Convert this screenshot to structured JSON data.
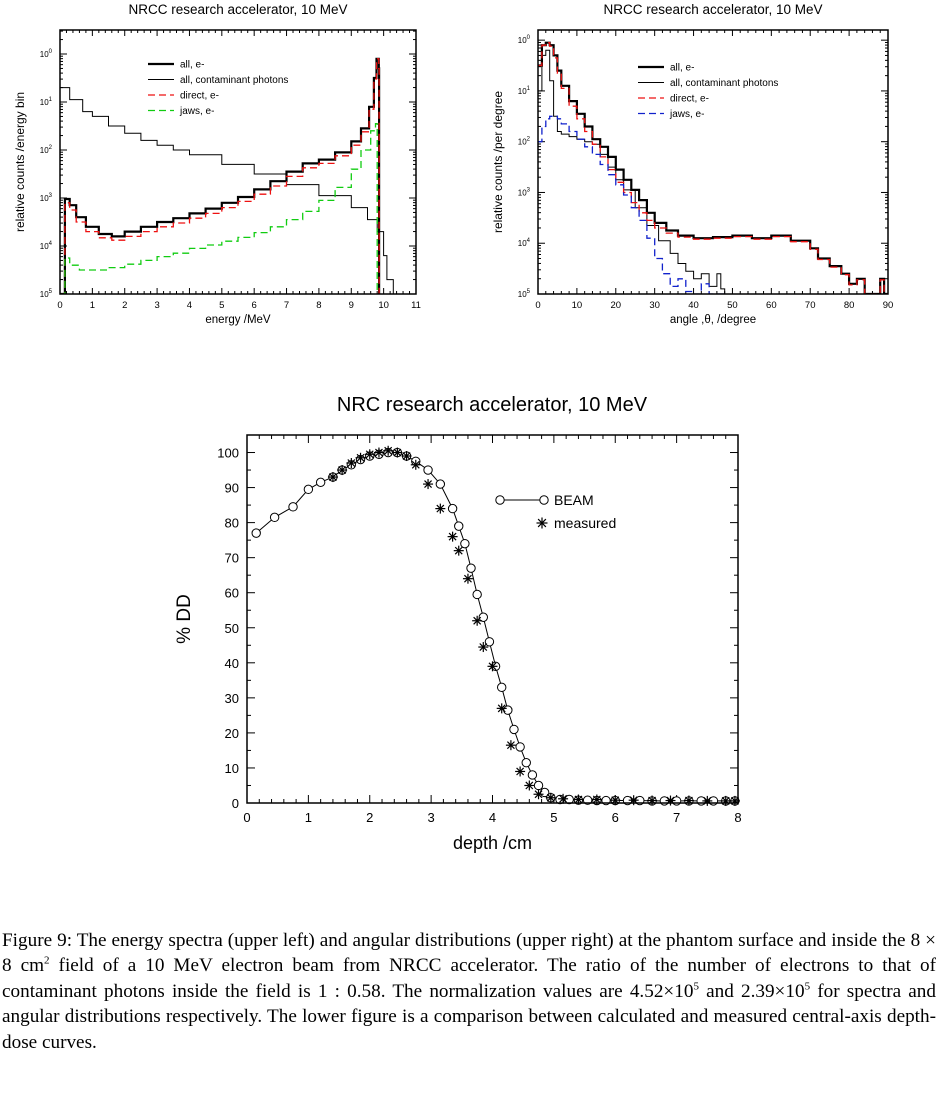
{
  "chart_data": [
    {
      "type": "line",
      "title": "NRCC research accelerator, 10 MeV",
      "xlabel": "energy /MeV",
      "ylabel": "relative counts /energy bin",
      "xlim": [
        0,
        11
      ],
      "ylim_log10": [
        -5,
        0.5
      ],
      "y_scale": "log",
      "xticks": [
        "0",
        "1",
        "2",
        "3",
        "4",
        "5",
        "6",
        "7",
        "8",
        "9",
        "10",
        "11"
      ],
      "yticks": [
        {
          "base": "10",
          "exp": "0",
          "v": 0
        },
        {
          "base": "10",
          "exp": "1",
          "v": -1
        },
        {
          "base": "10",
          "exp": "2",
          "v": -2
        },
        {
          "base": "10",
          "exp": "3",
          "v": -3
        },
        {
          "base": "10",
          "exp": "4",
          "v": -4
        },
        {
          "base": "10",
          "exp": "5",
          "v": -5
        }
      ],
      "legend_position": "top-center",
      "series": [
        {
          "name": "all, e-",
          "color": "#000000",
          "dash": "",
          "width": 2.2,
          "x": [
            0,
            0.1,
            0.15,
            0.3,
            0.5,
            0.8,
            1.2,
            1.6,
            2,
            2.5,
            3,
            3.5,
            4,
            4.5,
            5,
            5.5,
            6,
            6.5,
            7,
            7.5,
            8,
            8.5,
            9,
            9.3,
            9.55,
            9.7,
            9.78,
            9.85,
            9.86
          ],
          "y": [
            -5,
            -5,
            -3.02,
            -3.15,
            -3.4,
            -3.6,
            -3.75,
            -3.8,
            -3.7,
            -3.6,
            -3.5,
            -3.42,
            -3.32,
            -3.22,
            -3.1,
            -2.98,
            -2.82,
            -2.65,
            -2.45,
            -2.28,
            -2.2,
            -2.05,
            -1.82,
            -1.55,
            -1.1,
            -0.5,
            -0.1,
            -0.3,
            -5
          ]
        },
        {
          "name": "all, contaminant photons",
          "color": "#000000",
          "dash": "",
          "width": 1,
          "x": [
            0,
            0.3,
            0.7,
            1,
            1.5,
            2,
            2.5,
            3,
            3.5,
            4,
            5,
            6,
            7,
            8,
            9,
            9.5,
            9.8,
            10,
            10.1,
            10.3
          ],
          "y": [
            -0.7,
            -0.95,
            -1.2,
            -1.3,
            -1.5,
            -1.65,
            -1.8,
            -1.9,
            -2,
            -2.1,
            -2.3,
            -2.5,
            -2.72,
            -2.95,
            -3.2,
            -3.45,
            -3.7,
            -4.2,
            -4.7,
            -5
          ]
        },
        {
          "name": "direct, e-",
          "color": "#ee1111",
          "dash": "7,4",
          "width": 1.3,
          "x": [
            0,
            0.1,
            0.15,
            0.3,
            0.5,
            0.8,
            1.2,
            1.6,
            2,
            2.5,
            3,
            3.5,
            4,
            4.5,
            5,
            5.5,
            6,
            6.5,
            7,
            7.5,
            8,
            8.5,
            9,
            9.3,
            9.55,
            9.7,
            9.78,
            9.85,
            9.86
          ],
          "y": [
            -5,
            -5,
            -3.1,
            -3.25,
            -3.5,
            -3.7,
            -3.83,
            -3.88,
            -3.8,
            -3.7,
            -3.6,
            -3.52,
            -3.42,
            -3.32,
            -3.2,
            -3.07,
            -2.92,
            -2.75,
            -2.55,
            -2.37,
            -2.28,
            -2.12,
            -1.9,
            -1.62,
            -1.15,
            -0.52,
            -0.1,
            -0.3,
            -5
          ]
        },
        {
          "name": "jaws, e-",
          "color": "#11cc11",
          "dash": "7,4",
          "width": 1.3,
          "x": [
            0,
            0.1,
            0.15,
            0.3,
            0.6,
            1,
            1.5,
            2,
            2.5,
            3,
            3.5,
            4,
            4.5,
            5,
            5.5,
            6,
            6.5,
            7,
            7.5,
            8,
            8.5,
            9,
            9.3,
            9.6,
            9.75,
            9.8
          ],
          "y": [
            -5,
            -5,
            -4.25,
            -4.4,
            -4.5,
            -4.5,
            -4.45,
            -4.38,
            -4.3,
            -4.22,
            -4.15,
            -4.05,
            -3.98,
            -3.9,
            -3.82,
            -3.72,
            -3.6,
            -3.45,
            -3.28,
            -3.05,
            -2.78,
            -2.4,
            -2.0,
            -1.6,
            -1.45,
            -5
          ]
        }
      ]
    },
    {
      "type": "line",
      "title": "NRCC research accelerator, 10 MeV",
      "xlabel": "angle ,θ, /degree",
      "ylabel": "relative counts /per degree",
      "xlim": [
        0,
        90
      ],
      "ylim_log10": [
        -5,
        0.2
      ],
      "y_scale": "log",
      "xticks": [
        "0",
        "10",
        "20",
        "30",
        "40",
        "50",
        "60",
        "70",
        "80",
        "90"
      ],
      "yticks": [
        {
          "base": "10",
          "exp": "0",
          "v": 0
        },
        {
          "base": "10",
          "exp": "1",
          "v": -1
        },
        {
          "base": "10",
          "exp": "2",
          "v": -2
        },
        {
          "base": "10",
          "exp": "3",
          "v": -3
        },
        {
          "base": "10",
          "exp": "4",
          "v": -4
        },
        {
          "base": "10",
          "exp": "5",
          "v": -5
        }
      ],
      "legend_position": "top-right",
      "series": [
        {
          "name": "all, e-",
          "color": "#000000",
          "dash": "",
          "width": 2.2,
          "x": [
            0,
            1,
            2,
            3,
            4,
            5,
            6,
            8,
            10,
            12,
            14,
            16,
            18,
            20,
            22,
            24,
            26,
            28,
            30,
            33,
            36,
            40,
            45,
            50,
            55,
            60,
            65,
            70,
            72,
            75,
            78,
            80,
            82,
            84,
            86,
            88,
            89,
            90
          ],
          "y": [
            -0.5,
            -0.1,
            -0.05,
            -0.1,
            -0.3,
            -0.6,
            -0.9,
            -1.2,
            -1.45,
            -1.7,
            -1.95,
            -2.1,
            -2.3,
            -2.55,
            -2.75,
            -2.95,
            -3.15,
            -3.4,
            -3.6,
            -3.75,
            -3.85,
            -3.9,
            -3.88,
            -3.85,
            -3.9,
            -3.85,
            -3.95,
            -4.1,
            -4.3,
            -4.45,
            -4.6,
            -4.8,
            -4.7,
            -5,
            -5,
            -4.7,
            -5,
            -5
          ]
        },
        {
          "name": "all, contaminant photons",
          "color": "#000000",
          "dash": "",
          "width": 1,
          "x": [
            0,
            1,
            2,
            3,
            4,
            5,
            6,
            8,
            10,
            12,
            14,
            16,
            18,
            20,
            22,
            25,
            28,
            31,
            34,
            36,
            38,
            40,
            42,
            44,
            46,
            47,
            48
          ],
          "y": [
            -1.0,
            -0.3,
            -0.2,
            -0.8,
            -1.5,
            -1.8,
            -1.85,
            -1.9,
            -1.95,
            -2.0,
            -2.05,
            -2.25,
            -2.5,
            -2.75,
            -2.95,
            -3.3,
            -3.65,
            -3.95,
            -4.2,
            -4.4,
            -4.55,
            -4.7,
            -4.6,
            -4.85,
            -4.6,
            -4.9,
            -5
          ]
        },
        {
          "name": "direct, e-",
          "color": "#ee1111",
          "dash": "7,4",
          "width": 1.3,
          "x": [
            0,
            1,
            2,
            3,
            4,
            5,
            6,
            8,
            10,
            12,
            14,
            16,
            18,
            20,
            22,
            24,
            26,
            28,
            30,
            33,
            36,
            40,
            45,
            50,
            55,
            60,
            65,
            70,
            72,
            75,
            78,
            80,
            82,
            84,
            86,
            88,
            89,
            90
          ],
          "y": [
            -0.5,
            -0.1,
            -0.05,
            -0.12,
            -0.35,
            -0.65,
            -0.95,
            -1.3,
            -1.55,
            -1.8,
            -2.05,
            -2.3,
            -2.55,
            -2.8,
            -3.0,
            -3.2,
            -3.4,
            -3.55,
            -3.7,
            -3.8,
            -3.88,
            -3.92,
            -3.9,
            -3.87,
            -3.92,
            -3.87,
            -3.97,
            -4.12,
            -4.32,
            -4.47,
            -4.62,
            -4.82,
            -4.72,
            -5,
            -5,
            -4.72,
            -5,
            -5
          ]
        },
        {
          "name": "jaws, e-",
          "color": "#1122cc",
          "dash": "7,4",
          "width": 1.3,
          "x": [
            0,
            1,
            2,
            3,
            4,
            5,
            6,
            8,
            10,
            12,
            14,
            16,
            18,
            20,
            22,
            24,
            26,
            28,
            30,
            32,
            34,
            36,
            38,
            40,
            42,
            44,
            46,
            48
          ],
          "y": [
            -2.0,
            -1.7,
            -1.55,
            -1.5,
            -1.5,
            -1.55,
            -1.65,
            -1.8,
            -1.95,
            -2.1,
            -2.25,
            -2.45,
            -2.65,
            -2.85,
            -3.05,
            -3.3,
            -3.55,
            -3.9,
            -4.3,
            -4.6,
            -4.85,
            -4.7,
            -4.95,
            -5,
            -4.8,
            -5,
            -5,
            -5
          ]
        }
      ]
    },
    {
      "type": "scatter",
      "title": "NRC research accelerator, 10 MeV",
      "xlabel": "depth /cm",
      "ylabel": "% DD",
      "xlim": [
        0,
        8
      ],
      "ylim": [
        0,
        105
      ],
      "xticks": [
        "0",
        "1",
        "2",
        "3",
        "4",
        "5",
        "6",
        "7",
        "8"
      ],
      "yticks": [
        "0",
        "10",
        "20",
        "30",
        "40",
        "50",
        "60",
        "70",
        "80",
        "90",
        "100"
      ],
      "legend_position": "top-right",
      "series": [
        {
          "name": "BEAM",
          "marker": "circle",
          "line": true,
          "x": [
            0.15,
            0.45,
            0.75,
            1.0,
            1.2,
            1.4,
            1.55,
            1.7,
            1.85,
            2.0,
            2.15,
            2.3,
            2.45,
            2.6,
            2.75,
            2.95,
            3.15,
            3.35,
            3.45,
            3.55,
            3.65,
            3.75,
            3.85,
            3.95,
            4.05,
            4.15,
            4.25,
            4.35,
            4.45,
            4.55,
            4.65,
            4.75,
            4.85,
            4.95,
            5.1,
            5.25,
            5.4,
            5.55,
            5.7,
            5.85,
            6.0,
            6.2,
            6.4,
            6.6,
            6.8,
            7.0,
            7.2,
            7.4,
            7.6,
            7.8,
            7.95
          ],
          "y": [
            77,
            81.5,
            84.5,
            89.5,
            91.5,
            93,
            95,
            96.5,
            98,
            99,
            99.5,
            100,
            100,
            99,
            97.5,
            95,
            91,
            84,
            79,
            74,
            67,
            59.5,
            53,
            46,
            39,
            33,
            26.5,
            21,
            16,
            11.5,
            8,
            5,
            3,
            1.5,
            1,
            1,
            0.8,
            0.8,
            0.7,
            0.7,
            0.7,
            0.7,
            0.7,
            0.6,
            0.6,
            0.6,
            0.6,
            0.6,
            0.6,
            0.6,
            0.6
          ]
        },
        {
          "name": "measured",
          "marker": "asterisk",
          "line": false,
          "x": [
            1.4,
            1.55,
            1.7,
            1.85,
            2.0,
            2.15,
            2.3,
            2.45,
            2.6,
            2.75,
            2.95,
            3.15,
            3.35,
            3.45,
            3.6,
            3.75,
            3.85,
            4.0,
            4.15,
            4.3,
            4.45,
            4.6,
            4.75,
            4.95,
            5.15,
            5.4,
            5.7,
            6.0,
            6.3,
            6.6,
            6.9,
            7.2,
            7.5,
            7.8,
            7.95
          ],
          "y": [
            93,
            95,
            97,
            98.5,
            99.5,
            100,
            100.5,
            100,
            99,
            96.5,
            91,
            84,
            76,
            72,
            64,
            52,
            44.5,
            39,
            27,
            16.5,
            9,
            5,
            2.5,
            1.5,
            1.2,
            1,
            1,
            0.8,
            0.8,
            0.7,
            0.7,
            0.7,
            0.6,
            0.6,
            0.6
          ]
        }
      ]
    }
  ],
  "caption": {
    "p1": "Figure 9: The energy spectra (upper left) and angular distributions (upper right) at the phantom surface and inside the 8 × 8 cm",
    "p1_sup": "2",
    "p2": " field of a 10 MeV electron beam from NRCC accelerator. The ratio of the number of electrons to that of contaminant photons inside the field is 1 : 0.58. The normalization values are 4.52×10",
    "p2_sup": "5",
    "p3": " and 2.39×10",
    "p3_sup": "5",
    "p4": " for spectra and angular distributions respectively. The lower figure is a comparison between calculated and measured central-axis depth-dose curves."
  }
}
